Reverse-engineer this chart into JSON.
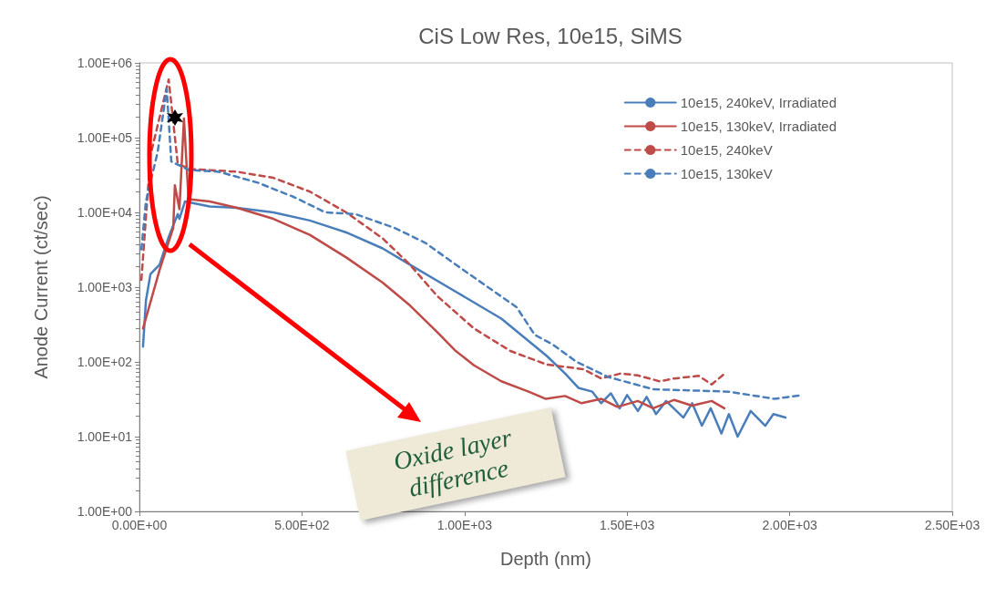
{
  "chart_data": {
    "type": "line",
    "title": "CiS Low Res, 10e15, SiMS",
    "xlabel": "Depth (nm)",
    "ylabel": "Anode Current (ct/sec)",
    "log": "y",
    "grid": false,
    "legend": "top right",
    "marker": "none",
    "xlim": [
      0,
      2500
    ],
    "xticks": [
      {
        "value": 0,
        "label": "0.00E+00"
      },
      {
        "value": 500,
        "label": "5.00E+02"
      },
      {
        "value": 1000,
        "label": "1.00E+03"
      },
      {
        "value": 1500,
        "label": "1.50E+03"
      },
      {
        "value": 2000,
        "label": "2.00E+03"
      },
      {
        "value": 2500,
        "label": "2.50E+03"
      }
    ],
    "ylim": [
      1,
      1000000
    ],
    "yticks": [
      {
        "value": 1,
        "label": "1.00E+00"
      },
      {
        "value": 10,
        "label": "1.00E+01"
      },
      {
        "value": 100,
        "label": "1.00E+02"
      },
      {
        "value": 1000,
        "label": "1.00E+03"
      },
      {
        "value": 10000,
        "label": "1.00E+04"
      },
      {
        "value": 100000,
        "label": "1.00E+05"
      },
      {
        "value": 1000000,
        "label": "1.00E+06"
      }
    ],
    "annotations": [
      "Oxide layer difference"
    ],
    "series": [
      {
        "name": "10e15, 240keV, Irradiated",
        "color": "#4a7ebb",
        "line_style": "solid",
        "x": [
          11,
          20,
          34,
          62,
          90,
          118,
          123,
          140,
          216,
          300,
          412,
          524,
          636,
          748,
          832,
          973,
          1113,
          1253,
          1309,
          1350,
          1393,
          1420,
          1450,
          1477,
          1500,
          1533,
          1560,
          1589,
          1620,
          1673,
          1700,
          1730,
          1757,
          1790,
          1813,
          1840,
          1880,
          1925,
          1950,
          1987
        ],
        "values": [
          160,
          660,
          1500,
          2000,
          4700,
          9500,
          8200,
          14000,
          12000,
          11500,
          10000,
          7800,
          5400,
          3300,
          2000,
          870,
          380,
          120,
          70,
          45,
          40,
          28,
          38,
          24,
          36,
          22,
          34,
          20,
          30,
          18,
          28,
          14,
          24,
          11,
          20,
          10,
          22,
          14,
          20,
          18
        ]
      },
      {
        "name": "10e15, 130keV, Irradiated",
        "color": "#be4b48",
        "line_style": "solid",
        "x": [
          11,
          62,
          104,
          109,
          123,
          137,
          151,
          216,
          300,
          412,
          524,
          636,
          748,
          832,
          916,
          973,
          1029,
          1113,
          1197,
          1250,
          1309,
          1360,
          1421,
          1470,
          1533,
          1580,
          1645,
          1700,
          1760,
          1799
        ],
        "values": [
          280,
          1700,
          6200,
          23000,
          11000,
          180000,
          15000,
          14000,
          11500,
          8200,
          5000,
          2500,
          1150,
          570,
          250,
          140,
          90,
          55,
          40,
          32,
          35,
          28,
          32,
          25,
          30,
          24,
          31,
          26,
          30,
          24
        ]
      },
      {
        "name": "10e15, 240keV",
        "color": "#be4b48",
        "line_style": "dashed",
        "x": [
          6,
          34,
          90,
          118,
          160,
          300,
          412,
          524,
          636,
          748,
          832,
          916,
          1029,
          1141,
          1253,
          1365,
          1420,
          1480,
          1533,
          1600,
          1645,
          1720,
          1760,
          1799
        ],
        "values": [
          1250,
          58000,
          600000,
          44000,
          38000,
          35000,
          29000,
          19000,
          10000,
          4500,
          2000,
          760,
          280,
          140,
          92,
          80,
          60,
          70,
          66,
          55,
          60,
          65,
          50,
          69
        ]
      },
      {
        "name": "10e15, 130keV",
        "color": "#4a7ebb",
        "line_style": "dashed",
        "x": [
          6,
          20,
          56,
          84,
          98,
          151,
          244,
          364,
          476,
          572,
          664,
          785,
          880,
          973,
          1065,
          1160,
          1216,
          1272,
          1345,
          1441,
          1581,
          1813,
          1953,
          2038
        ],
        "values": [
          3200,
          14000,
          64000,
          450000,
          48000,
          37000,
          35000,
          25000,
          16000,
          10000,
          9500,
          6200,
          3900,
          2000,
          1050,
          540,
          230,
          170,
          100,
          63,
          43,
          40,
          32,
          36
        ]
      }
    ]
  }
}
